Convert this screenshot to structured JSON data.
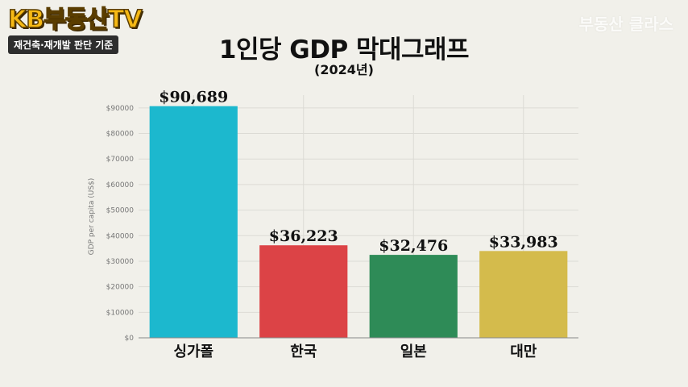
{
  "branding": {
    "logo_text": "KB부동산TV",
    "logo_subtitle": "재건축·재개발 판단 기준",
    "watermark": "부동산 클라스"
  },
  "colors": {
    "logo": "#f6b915",
    "background": "#f1f0ea"
  },
  "chart_data": {
    "type": "bar",
    "title": "1인당 GDP 막대그래프",
    "subtitle": "(2024년)",
    "xlabel": "",
    "ylabel": "GDP per capita (US$)",
    "categories": [
      "싱가폴",
      "한국",
      "일본",
      "대만"
    ],
    "values": [
      90689,
      36223,
      32476,
      33983
    ],
    "data_labels": [
      "$90,689",
      "$36,223",
      "$32,476",
      "$33,983"
    ],
    "colors": [
      "#1cb8ce",
      "#dc4346",
      "#2e8b57",
      "#d4bb4c"
    ],
    "ylim": [
      0,
      95000
    ],
    "yticks": [
      0,
      10000,
      20000,
      30000,
      40000,
      50000,
      60000,
      70000,
      80000,
      90000
    ],
    "ytick_labels": [
      "$0",
      "$10000",
      "$20000",
      "$30000",
      "$40000",
      "$50000",
      "$60000",
      "$70000",
      "$80000",
      "$90000"
    ],
    "grid": true,
    "legend": "none"
  }
}
